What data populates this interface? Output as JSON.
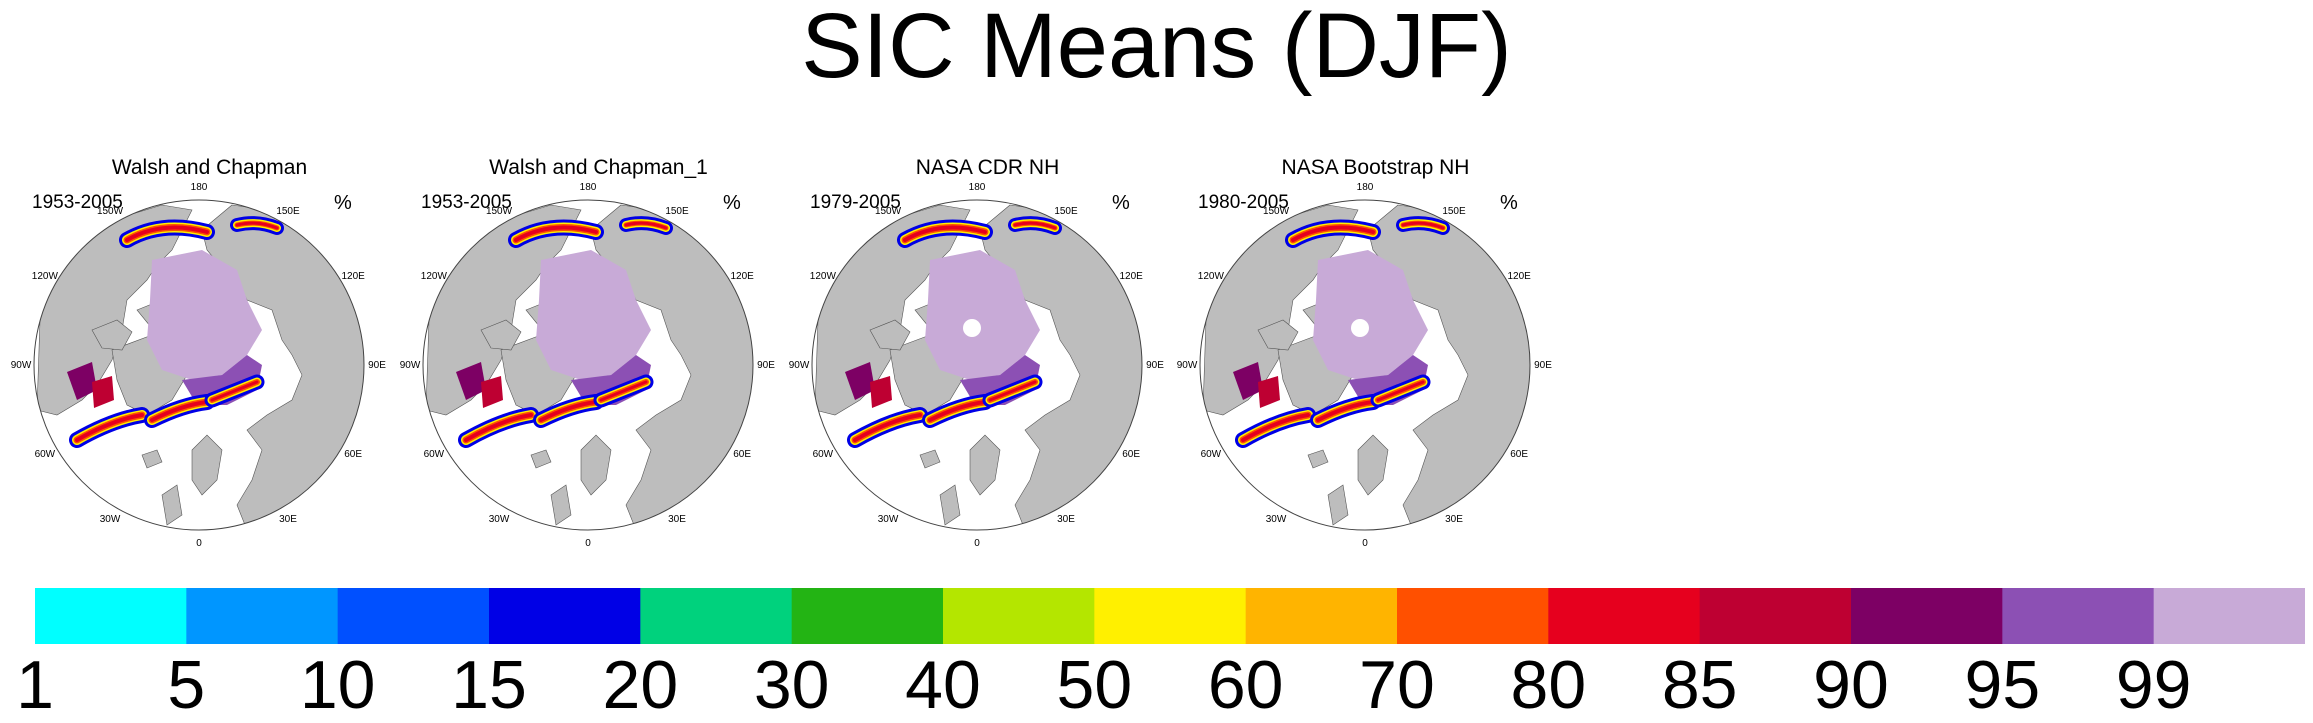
{
  "title": "SIC Means (DJF)",
  "units": "%",
  "longitude_labels": [
    "180",
    "150E",
    "120E",
    "90E",
    "60E",
    "30E",
    "0",
    "30W",
    "60W",
    "90W",
    "120W",
    "150W"
  ],
  "chart_data": {
    "type": "heatmap",
    "title": "SIC Means (DJF)",
    "projection": "north polar stereographic",
    "units": "%",
    "panels": [
      {
        "name": "Walsh and Chapman",
        "period": "1953-2005",
        "pole_hole": false
      },
      {
        "name": "Walsh and Chapman_1",
        "period": "1953-2005",
        "pole_hole": false
      },
      {
        "name": "NASA CDR NH",
        "period": "1979-2005",
        "pole_hole": true
      },
      {
        "name": "NASA Bootstrap NH",
        "period": "1980-2005",
        "pole_hole": true
      }
    ],
    "colorbar": {
      "levels": [
        1,
        5,
        10,
        15,
        20,
        30,
        40,
        50,
        60,
        70,
        80,
        85,
        90,
        95,
        99
      ],
      "colors": [
        "#00ffff",
        "#0096ff",
        "#0050ff",
        "#0000e6",
        "#00d27d",
        "#23b414",
        "#b4e600",
        "#fff000",
        "#ffb400",
        "#ff5000",
        "#e6001e",
        "#be0032",
        "#7d0064",
        "#8c50b4",
        "#c8aad7"
      ]
    }
  }
}
